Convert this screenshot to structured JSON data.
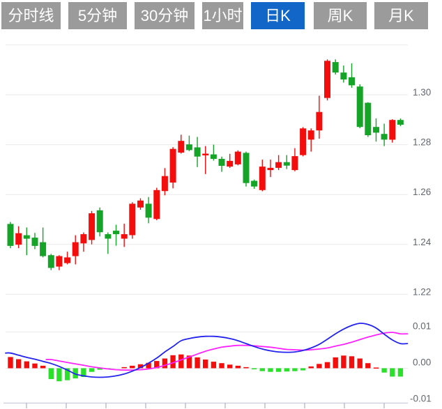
{
  "tabs": {
    "items": [
      {
        "label": "分时线",
        "active": false
      },
      {
        "label": "5分钟",
        "active": false
      },
      {
        "label": "30分钟",
        "active": false
      },
      {
        "label": "1小时",
        "active": false
      },
      {
        "label": "日K",
        "active": true
      },
      {
        "label": "周K",
        "active": false
      },
      {
        "label": "月K",
        "active": false
      }
    ]
  },
  "colors": {
    "tab_bg": "#9b9b9b",
    "tab_active_bg": "#1166c8",
    "tab_text": "#ffffff",
    "up": "#f40d0d",
    "down": "#16a428",
    "macd_bar_up": "#f40d0d",
    "macd_bar_down": "#2ae02a",
    "dif_line": "#2222f0",
    "dea_line": "#ff22ff",
    "grid": "#e9e9e9",
    "axis_line": "#c9ccd9",
    "tick": "#9ba1b5",
    "axis_text": "#62676d"
  },
  "chart_data": {
    "type": "candlestick+macd",
    "convention": "red = up (close > open), green = down — Chinese style",
    "main": {
      "y_ticks": [
        {
          "label": "1.30",
          "value": 1.3
        },
        {
          "label": "1.28",
          "value": 1.28
        },
        {
          "label": "1.26",
          "value": 1.26
        },
        {
          "label": "1.24",
          "value": 1.24
        },
        {
          "label": "1.22",
          "value": 1.22
        }
      ],
      "grid_values": [
        1.32,
        1.3,
        1.28,
        1.26,
        1.24,
        1.22
      ],
      "ylim": [
        1.218,
        1.322
      ],
      "columns": [
        "open",
        "high",
        "low",
        "close"
      ],
      "candles": [
        [
          1.2482,
          1.249,
          1.2385,
          1.2394
        ],
        [
          1.2399,
          1.2473,
          1.2385,
          1.2445
        ],
        [
          1.2437,
          1.2468,
          1.2357,
          1.2423
        ],
        [
          1.2427,
          1.2446,
          1.2381,
          1.2394
        ],
        [
          1.2409,
          1.2468,
          1.2348,
          1.2353
        ],
        [
          1.2357,
          1.2362,
          1.2297,
          1.2306
        ],
        [
          1.2311,
          1.2357,
          1.2297,
          1.2353
        ],
        [
          1.2325,
          1.2371,
          1.232,
          1.2348
        ],
        [
          1.2353,
          1.2437,
          1.232,
          1.2409
        ],
        [
          1.2404,
          1.2448,
          1.2371,
          1.2441
        ],
        [
          1.2418,
          1.2534,
          1.24,
          1.2525
        ],
        [
          1.2537,
          1.2548,
          1.2432,
          1.2449
        ],
        [
          1.2441,
          1.2448,
          1.2362,
          1.2423
        ],
        [
          1.2455,
          1.2479,
          1.2395,
          1.2441
        ],
        [
          1.2423,
          1.2483,
          1.239,
          1.2441
        ],
        [
          1.2437,
          1.2569,
          1.2423,
          1.2563
        ],
        [
          1.2548,
          1.2585,
          1.2539,
          1.2576
        ],
        [
          1.2563,
          1.259,
          1.2485,
          1.2507
        ],
        [
          1.2502,
          1.2627,
          1.2497,
          1.2618
        ],
        [
          1.2614,
          1.2706,
          1.2597,
          1.2674
        ],
        [
          1.2648,
          1.279,
          1.2625,
          1.2783
        ],
        [
          1.2768,
          1.284,
          1.2764,
          1.2815
        ],
        [
          1.2801,
          1.2836,
          1.2774,
          1.2778
        ],
        [
          1.2789,
          1.2831,
          1.271,
          1.2752
        ],
        [
          1.2757,
          1.2794,
          1.2682,
          1.2764
        ],
        [
          1.2761,
          1.28,
          1.2736,
          1.2743
        ],
        [
          1.2743,
          1.2752,
          1.2691,
          1.2715
        ],
        [
          1.2712,
          1.2763,
          1.2707,
          1.2735
        ],
        [
          1.2721,
          1.2777,
          1.2717,
          1.2772
        ],
        [
          1.2767,
          1.2772,
          1.2632,
          1.2646
        ],
        [
          1.2655,
          1.266,
          1.2623,
          1.2632
        ],
        [
          1.2618,
          1.274,
          1.2613,
          1.2712
        ],
        [
          1.2698,
          1.274,
          1.267,
          1.2707
        ],
        [
          1.2707,
          1.2758,
          1.2698,
          1.273
        ],
        [
          1.273,
          1.2758,
          1.2702,
          1.2716
        ],
        [
          1.2698,
          1.2786,
          1.2693,
          1.2754
        ],
        [
          1.2758,
          1.287,
          1.2753,
          1.2865
        ],
        [
          1.282,
          1.2865,
          1.2772,
          1.2857
        ],
        [
          1.2857,
          1.2996,
          1.2824,
          1.2931
        ],
        [
          1.2987,
          1.3142,
          1.2977,
          1.3136
        ],
        [
          1.3131,
          1.3142,
          1.3081,
          1.3089
        ],
        [
          1.3089,
          1.3117,
          1.3049,
          1.3061
        ],
        [
          1.307,
          1.3126,
          1.3028,
          1.3038
        ],
        [
          1.3033,
          1.3042,
          1.2866,
          1.2871
        ],
        [
          1.2968,
          1.297,
          1.2831,
          1.2838
        ],
        [
          1.2871,
          1.2905,
          1.2812,
          1.2848
        ],
        [
          1.2843,
          1.2884,
          1.2794,
          1.282
        ],
        [
          1.282,
          1.2902,
          1.2808,
          1.2899
        ],
        [
          1.2899,
          1.2905,
          1.2874,
          1.288
        ]
      ]
    },
    "macd": {
      "y_ticks": [
        {
          "label": "0.01",
          "value": 0.01
        },
        {
          "label": "0.00",
          "value": 0.0
        },
        {
          "label": "-0.01",
          "value": -0.01
        }
      ],
      "ylim": [
        -0.011,
        0.013
      ],
      "hist": [
        0.0031,
        0.0025,
        0.0019,
        0.0013,
        0.0007,
        -0.003,
        -0.0036,
        -0.0033,
        -0.0028,
        -0.0024,
        -0.001,
        -0.0004,
        -0.0002,
        0.0,
        0.0003,
        0.0007,
        0.0011,
        0.0015,
        0.002,
        0.0027,
        0.0036,
        0.0038,
        0.0035,
        0.003,
        0.0024,
        0.0018,
        0.0014,
        0.001,
        0.0007,
        0.0003,
        -0.0003,
        -0.0008,
        -0.001,
        -0.001,
        -0.0009,
        -0.0008,
        -0.0006,
        0.0005,
        0.0012,
        0.0017,
        0.003,
        0.0035,
        0.0033,
        0.0027,
        0.0014,
        0.0002,
        -0.0012,
        -0.0023,
        -0.0023
      ],
      "dif": [
        0.0042,
        0.0036,
        0.003,
        0.0025,
        0.0019,
        0.0013,
        0.0005,
        -0.0005,
        -0.0016,
        -0.0021,
        -0.0024,
        -0.0025,
        -0.0024,
        -0.0021,
        -0.0016,
        -0.0008,
        0.0002,
        0.0014,
        0.0028,
        0.0045,
        0.006,
        0.0076,
        0.0082,
        0.0086,
        0.0088,
        0.0088,
        0.0086,
        0.0082,
        0.0076,
        0.0068,
        0.006,
        0.0053,
        0.0048,
        0.0045,
        0.0044,
        0.0045,
        0.0049,
        0.0056,
        0.0066,
        0.008,
        0.0095,
        0.0108,
        0.0118,
        0.0124,
        0.0121,
        0.0111,
        0.0094,
        0.0078,
        0.0068
      ],
      "dea": [
        null,
        null,
        null,
        null,
        null,
        0.0024,
        0.002,
        0.0016,
        0.0012,
        0.0008,
        0.0004,
        0.0001,
        -0.0002,
        -0.0004,
        -0.0005,
        -0.0005,
        -0.0004,
        -0.0002,
        0.0002,
        0.0008,
        0.0015,
        0.0023,
        0.0031,
        0.0039,
        0.0047,
        0.0053,
        0.0058,
        0.0061,
        0.0063,
        0.0063,
        0.0062,
        0.006,
        0.0058,
        0.0055,
        0.0052,
        0.0051,
        0.005,
        0.0051,
        0.0053,
        0.0056,
        0.0061,
        0.0066,
        0.0072,
        0.0079,
        0.0086,
        0.0092,
        0.0097,
        0.0099,
        0.0095
      ]
    }
  }
}
